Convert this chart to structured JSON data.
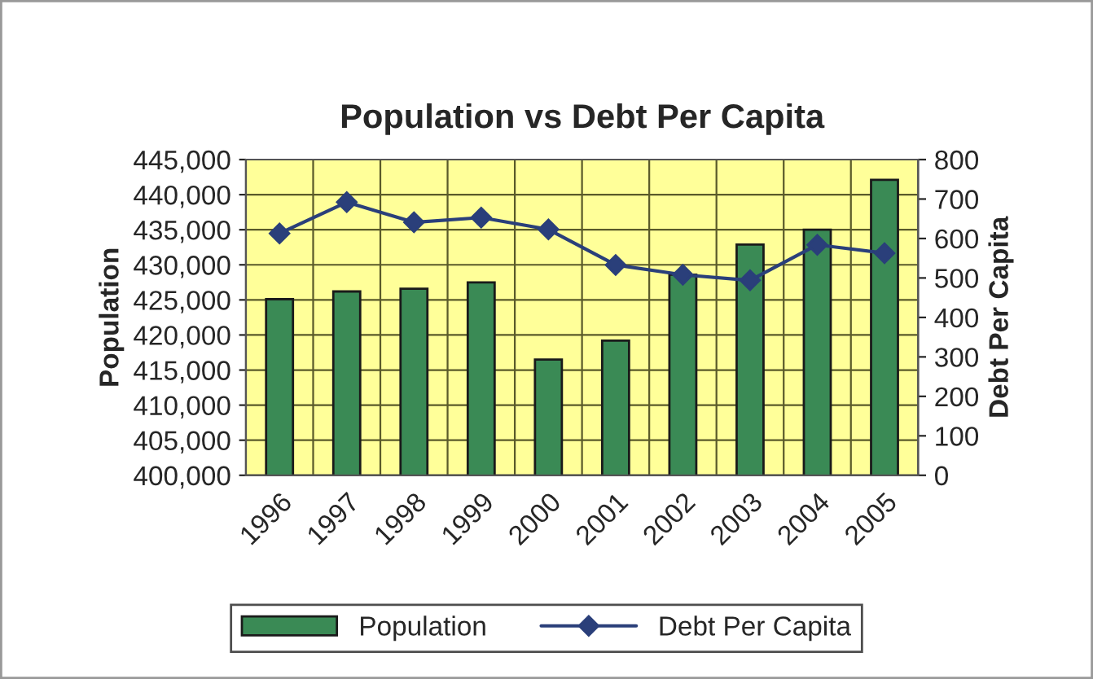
{
  "chart_data": {
    "type": "bar",
    "title": "Population vs Debt Per Capita",
    "ylabel": "Population",
    "y2label": "Debt Per Capita",
    "categories": [
      "1996",
      "1997",
      "1998",
      "1999",
      "2000",
      "2001",
      "2002",
      "2003",
      "2004",
      "2005"
    ],
    "series": [
      {
        "name": "Population",
        "color": "#3a8a55",
        "values": [
          425100,
          426200,
          426600,
          427500,
          416500,
          419200,
          428600,
          432900,
          435000,
          442100
        ]
      },
      {
        "name": "Debt Per Capita",
        "type": "line",
        "axis": "y2",
        "color": "#2a3f7a",
        "marker": "diamond",
        "values": [
          613,
          692,
          641,
          653,
          623,
          533,
          508,
          494,
          584,
          563
        ]
      }
    ],
    "ylim": [
      400000,
      445000
    ],
    "yticks": [
      {
        "value": 400000,
        "label": "400,000"
      },
      {
        "value": 405000,
        "label": "405,000"
      },
      {
        "value": 410000,
        "label": "410,000"
      },
      {
        "value": 415000,
        "label": "415,000"
      },
      {
        "value": 420000,
        "label": "420,000"
      },
      {
        "value": 425000,
        "label": "425,000"
      },
      {
        "value": 430000,
        "label": "430,000"
      },
      {
        "value": 435000,
        "label": "435,000"
      },
      {
        "value": 440000,
        "label": "440,000"
      },
      {
        "value": 445000,
        "label": "445,000"
      }
    ],
    "y2lim": [
      0,
      800
    ],
    "y2ticks": [
      0,
      100,
      200,
      300,
      400,
      500,
      600,
      700,
      800
    ],
    "grid": true,
    "legend": "bottom"
  }
}
